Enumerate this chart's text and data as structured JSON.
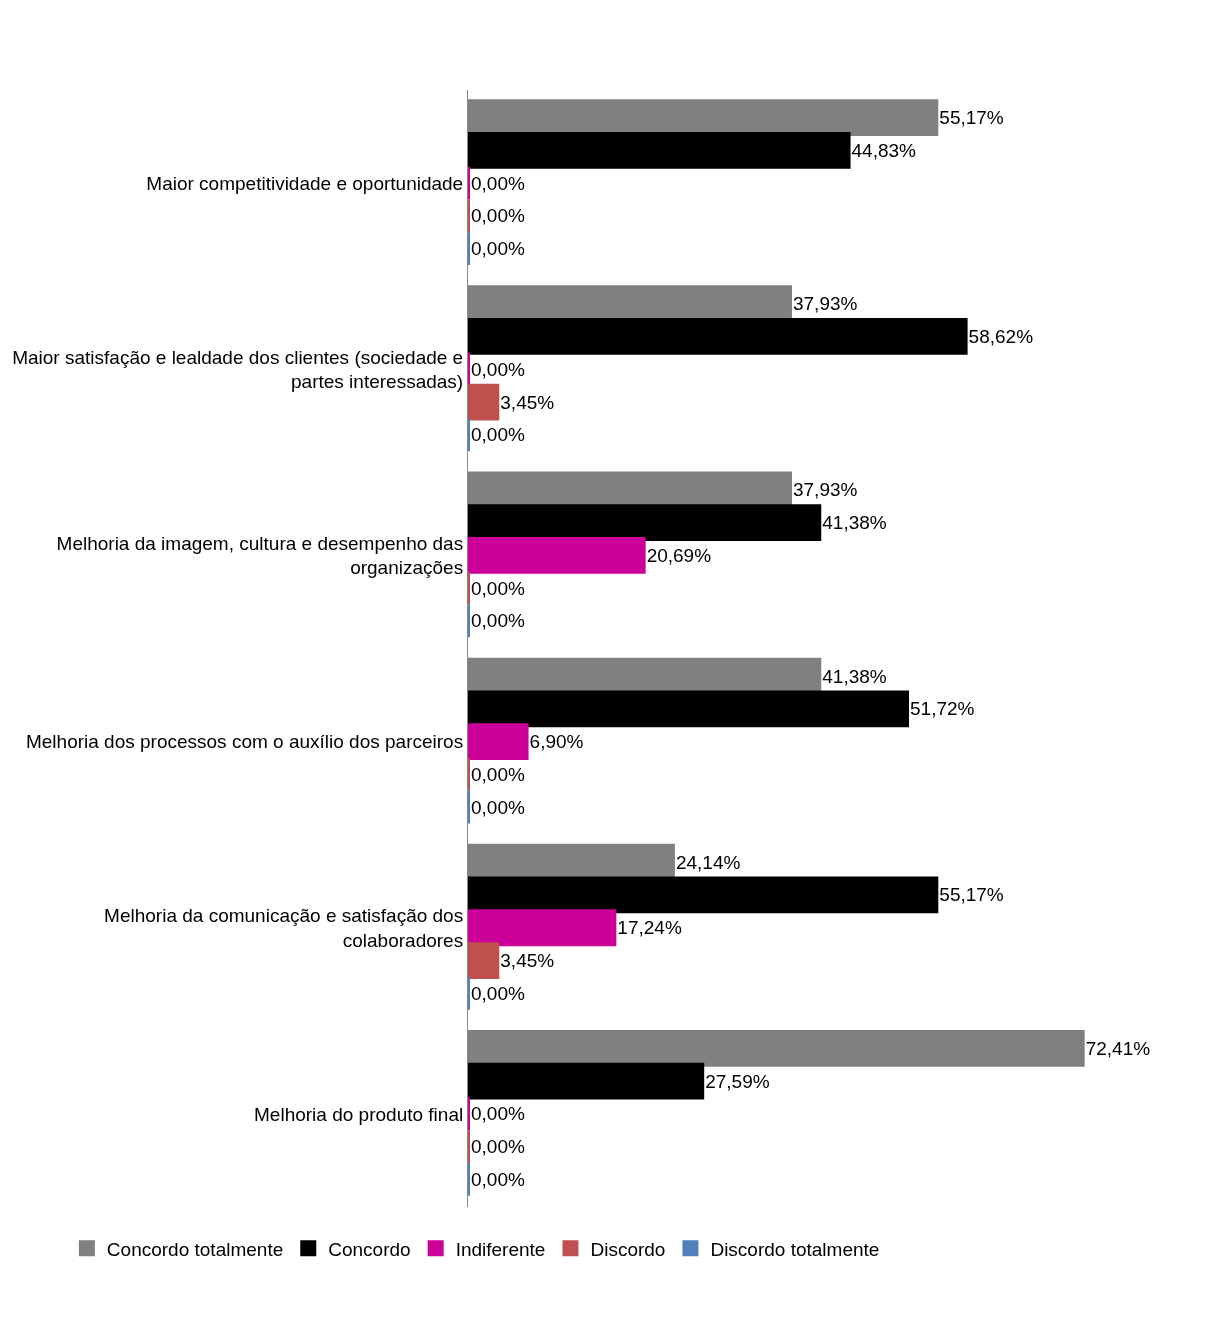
{
  "chart_data": {
    "type": "bar",
    "orientation": "horizontal",
    "legend": "bottom",
    "categories": [
      "Maior competitividade e oportunidade",
      "Maior satisfação e lealdade dos clientes (sociedade e partes interessadas)",
      "Melhoria da imagem, cultura e desempenho das organizações",
      "Melhoria dos processos com o auxílio dos parceiros",
      "Melhoria da comunicação e satisfação dos colaboradores",
      "Melhoria do produto final"
    ],
    "series": [
      {
        "name": "Concordo totalmente",
        "color": "#808080",
        "values": [
          55.17,
          37.93,
          37.93,
          41.38,
          24.14,
          72.41
        ],
        "value_labels": [
          "55,17%",
          "37,93%",
          "37,93%",
          "41,38%",
          "24,14%",
          "72,41%"
        ]
      },
      {
        "name": "Concordo",
        "color": "#000000",
        "values": [
          44.83,
          58.62,
          41.38,
          51.72,
          55.17,
          27.59
        ],
        "value_labels": [
          "44,83%",
          "58,62%",
          "41,38%",
          "51,72%",
          "55,17%",
          "27,59%"
        ]
      },
      {
        "name": "Indiferente",
        "color": "#cc0099",
        "values": [
          0,
          0,
          20.69,
          6.9,
          17.24,
          0
        ],
        "value_labels": [
          "0,00%",
          "0,00%",
          "20,69%",
          "6,90%",
          "17,24%",
          "0,00%"
        ]
      },
      {
        "name": "Discordo",
        "color": "#c0504d",
        "values": [
          0,
          3.45,
          0,
          0,
          3.45,
          0
        ],
        "value_labels": [
          "0,00%",
          "3,45%",
          "0,00%",
          "0,00%",
          "3,45%",
          "0,00%"
        ]
      },
      {
        "name": "Discordo totalmente",
        "color": "#4f81bd",
        "values": [
          0,
          0,
          0,
          0,
          0,
          0
        ],
        "value_labels": [
          "0,00%",
          "0,00%",
          "0,00%",
          "0,00%",
          "0,00%",
          "0,00%"
        ]
      }
    ]
  }
}
